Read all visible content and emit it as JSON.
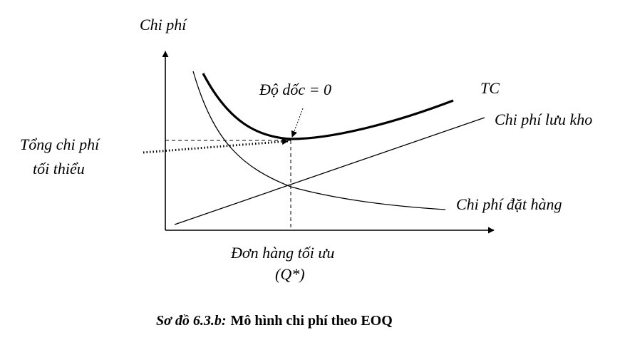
{
  "diagram": {
    "y_axis_label": "Chi phí",
    "labels": {
      "slope": "Độ dốc = 0",
      "total_cost": "TC",
      "holding_cost": "Chi phí lưu kho",
      "ordering_cost": "Chi phí đặt hàng",
      "min_total_line1": "Tổng chi phí",
      "min_total_line2": "tối thiểu",
      "optimal_order_line1": "Đơn hàng tối ưu",
      "optimal_order_line2": "(Q*)"
    }
  },
  "caption": {
    "prefix": "Sơ đồ 6.3.b:",
    "title": "Mô hình chi phí theo EOQ"
  }
}
